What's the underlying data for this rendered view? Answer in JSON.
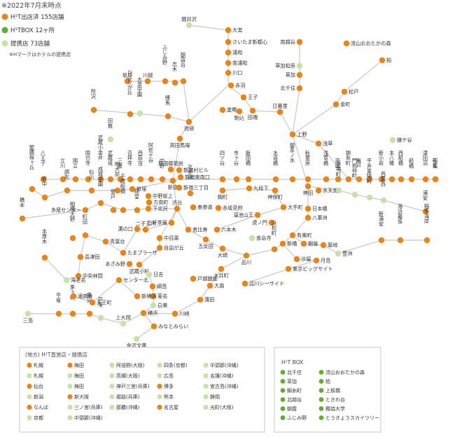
{
  "header": {
    "date_note": "※2022年7月末時点",
    "legend": [
      {
        "label": "H¹T出店済 155店舗",
        "color": "#ee8213"
      },
      {
        "label": "H¹TBOX 12ヶ所",
        "color": "#5fae2e"
      },
      {
        "label": "提携店 73店舗",
        "color": "#c6e3a7"
      }
    ],
    "hotel_note": "※Hマークはホテルの提携店"
  },
  "colors": {
    "store": "#ee8213",
    "box": "#5fae2e",
    "partner": "#c6e3a7",
    "line": "#c8c8c8"
  },
  "stations": [
    {
      "name": "軽井沢",
      "type": "partner"
    },
    {
      "name": "大宮",
      "type": "store"
    },
    {
      "name": "さいたま新都心",
      "type": "store"
    },
    {
      "name": "浦和",
      "type": "store"
    },
    {
      "name": "南浦和",
      "type": "store"
    },
    {
      "name": "川口",
      "type": "store"
    },
    {
      "name": "赤羽",
      "type": "store"
    },
    {
      "name": "王子",
      "type": "store"
    },
    {
      "name": "南越谷",
      "type": "store"
    },
    {
      "name": "流山おおたかの森",
      "type": "store"
    },
    {
      "name": "柏",
      "type": "store"
    },
    {
      "name": "草加松原",
      "type": "partner"
    },
    {
      "name": "草加",
      "type": "store"
    },
    {
      "name": "北千住",
      "type": "store"
    },
    {
      "name": "松戸",
      "type": "store"
    },
    {
      "name": "金町",
      "type": "store"
    },
    {
      "name": "鎌ケ谷",
      "type": "partner"
    },
    {
      "name": "日暮里",
      "type": "store"
    },
    {
      "name": "上野",
      "type": "store"
    },
    {
      "name": "浅草",
      "type": "store"
    },
    {
      "name": "巣鴨",
      "type": "store"
    },
    {
      "name": "駒込",
      "type": "store"
    },
    {
      "name": "田端",
      "type": "store"
    },
    {
      "name": "池袋",
      "type": "store"
    },
    {
      "name": "高田馬場",
      "type": "store"
    },
    {
      "name": "坂戸",
      "type": "store"
    },
    {
      "name": "川越",
      "type": "store"
    },
    {
      "name": "ふじみ野",
      "type": "store"
    },
    {
      "name": "朝霞台",
      "type": "store"
    },
    {
      "name": "志木",
      "type": "store"
    },
    {
      "name": "所沢",
      "type": "store"
    },
    {
      "name": "ひばりが丘",
      "type": "store"
    },
    {
      "name": "大泉学園",
      "type": "partner"
    },
    {
      "name": "練馬",
      "type": "store"
    },
    {
      "name": "田無",
      "type": "partner"
    },
    {
      "name": "八王子",
      "type": "store"
    },
    {
      "name": "立川",
      "type": "store"
    },
    {
      "name": "国立",
      "type": "store"
    },
    {
      "name": "国分寺",
      "type": "store"
    },
    {
      "name": "武蔵小金井",
      "type": "store"
    },
    {
      "name": "武蔵境",
      "type": "store"
    },
    {
      "name": "三鷹",
      "type": "store"
    },
    {
      "name": "吉祥寺",
      "type": "store"
    },
    {
      "name": "西荻窪",
      "type": "store"
    },
    {
      "name": "阿佐ケ谷",
      "type": "store"
    },
    {
      "name": "中野",
      "type": "store"
    },
    {
      "name": "新宿御苑前",
      "type": "store"
    },
    {
      "name": "新宿村ビル",
      "type": "store"
    },
    {
      "name": "新宿東南口",
      "type": "store"
    },
    {
      "name": "新宿",
      "type": "store"
    },
    {
      "name": "新宿三丁目",
      "type": "store"
    },
    {
      "name": "四ツ谷",
      "type": "store"
    },
    {
      "name": "市ヶ谷",
      "type": "store"
    },
    {
      "name": "飯田橋",
      "type": "store"
    },
    {
      "name": "水道橋",
      "type": "store"
    },
    {
      "name": "御茶ノ水",
      "type": "store"
    },
    {
      "name": "秋葉原",
      "type": "store"
    },
    {
      "name": "浅草橋",
      "type": "store"
    },
    {
      "name": "両国",
      "type": "store"
    },
    {
      "name": "錦糸町",
      "type": "store"
    },
    {
      "name": "亀戸",
      "type": "store"
    },
    {
      "name": "平井",
      "type": "store"
    },
    {
      "name": "新小岩",
      "type": "store"
    },
    {
      "name": "本八幡",
      "type": "store"
    },
    {
      "name": "西船橋",
      "type": "store"
    },
    {
      "name": "船橋",
      "type": "store"
    },
    {
      "name": "津田沼",
      "type": "store"
    },
    {
      "name": "稲毛",
      "type": "store"
    },
    {
      "name": "千葉",
      "type": "store"
    },
    {
      "name": "聖蹟桜ヶ丘",
      "type": "store"
    },
    {
      "name": "府中",
      "type": "store"
    },
    {
      "name": "調布",
      "type": "store"
    },
    {
      "name": "仙川",
      "type": "store"
    },
    {
      "name": "明大前",
      "type": "store"
    },
    {
      "name": "笹塚",
      "type": "store"
    },
    {
      "name": "中野坂上",
      "type": "store"
    },
    {
      "name": "方南町",
      "type": "store"
    },
    {
      "name": "橋本",
      "type": "store"
    },
    {
      "name": "多摩センター",
      "type": "store"
    },
    {
      "name": "下北沢",
      "type": "store"
    },
    {
      "name": "千歳船橋",
      "type": "store"
    },
    {
      "name": "成城学園",
      "type": "store"
    },
    {
      "name": "登戸",
      "type": "store"
    },
    {
      "name": "経堂",
      "type": "store"
    },
    {
      "name": "渋谷",
      "type": "store"
    },
    {
      "name": "表参道",
      "type": "store"
    },
    {
      "name": "北参道",
      "type": "store"
    },
    {
      "name": "赤坂見附",
      "type": "store"
    },
    {
      "name": "麹町",
      "type": "store"
    },
    {
      "name": "九段下",
      "type": "store"
    },
    {
      "name": "神田",
      "type": "store"
    },
    {
      "name": "水天宮",
      "type": "store"
    },
    {
      "name": "茅場町",
      "type": "partner"
    },
    {
      "name": "門前仲町",
      "type": "partner"
    },
    {
      "name": "東陽町",
      "type": "partner"
    },
    {
      "name": "西葛西",
      "type": "partner"
    },
    {
      "name": "浦安",
      "type": "store"
    },
    {
      "name": "日本橋",
      "type": "store"
    },
    {
      "name": "神保町",
      "type": "store"
    },
    {
      "name": "大手町",
      "type": "store"
    },
    {
      "name": "八重洲",
      "type": "store"
    },
    {
      "name": "溜池山王",
      "type": "store"
    },
    {
      "name": "虎ノ門",
      "type": "store"
    },
    {
      "name": "六本木",
      "type": "store"
    },
    {
      "name": "恵比寿",
      "type": "store"
    },
    {
      "name": "三軒茶屋",
      "type": "store"
    },
    {
      "name": "二子玉川",
      "type": "store"
    },
    {
      "name": "溝の口",
      "type": "store"
    },
    {
      "name": "中目黒",
      "type": "store"
    },
    {
      "name": "自由が丘",
      "type": "store"
    },
    {
      "name": "たまプラーザ",
      "type": "store"
    },
    {
      "name": "あざみ野",
      "type": "store"
    },
    {
      "name": "青葉台",
      "type": "store"
    },
    {
      "name": "町田",
      "type": "store"
    },
    {
      "name": "相模大野",
      "type": "store"
    },
    {
      "name": "長津田",
      "type": "store"
    },
    {
      "name": "中央林間",
      "type": "store"
    },
    {
      "name": "海老名",
      "type": "partner"
    },
    {
      "name": "本厚木",
      "type": "store"
    },
    {
      "name": "武蔵小杉",
      "type": "store"
    },
    {
      "name": "日吉",
      "type": "partner"
    },
    {
      "name": "センター北",
      "type": "store"
    },
    {
      "name": "綱島",
      "type": "store"
    },
    {
      "name": "菊名",
      "type": "store"
    },
    {
      "name": "白楽",
      "type": "partner"
    },
    {
      "name": "新横浜",
      "type": "store"
    },
    {
      "name": "横浜",
      "type": "store"
    },
    {
      "name": "川崎",
      "type": "store"
    },
    {
      "name": "みなとみらい",
      "type": "store"
    },
    {
      "name": "金沢文庫",
      "type": "partner"
    },
    {
      "name": "上大岡",
      "type": "partner"
    },
    {
      "name": "戸塚",
      "type": "partner"
    },
    {
      "name": "藤沢",
      "type": "store"
    },
    {
      "name": "茅ヶ崎",
      "type": "store"
    },
    {
      "name": "平塚",
      "type": "store"
    },
    {
      "name": "三島",
      "type": "partner"
    },
    {
      "name": "湘南台",
      "type": "store"
    },
    {
      "name": "天王町",
      "type": "store"
    },
    {
      "name": "五反田",
      "type": "store"
    },
    {
      "name": "大崎",
      "type": "store"
    },
    {
      "name": "品川",
      "type": "store"
    },
    {
      "name": "泉岳寺",
      "type": "partner"
    },
    {
      "name": "浜松町",
      "type": "store"
    },
    {
      "name": "新橋",
      "type": "store"
    },
    {
      "name": "有楽町",
      "type": "store"
    },
    {
      "name": "銀座",
      "type": "store"
    },
    {
      "name": "築地",
      "type": "store"
    },
    {
      "name": "汐留",
      "type": "store"
    },
    {
      "name": "月島",
      "type": "store"
    },
    {
      "name": "豊洲",
      "type": "partner"
    },
    {
      "name": "新浦安",
      "type": "store"
    },
    {
      "name": "海浜幕張",
      "type": "store"
    },
    {
      "name": "稲毛海岸",
      "type": "store"
    },
    {
      "name": "東京ビッグサイト",
      "type": "store"
    },
    {
      "name": "品川シーサイド",
      "type": "store"
    },
    {
      "name": "大井町",
      "type": "store"
    },
    {
      "name": "大森",
      "type": "store"
    },
    {
      "name": "蒲田",
      "type": "store"
    },
    {
      "name": "戸越銀座",
      "type": "store"
    }
  ],
  "regional": {
    "title": "(地方) H¹T直営店・提携店",
    "items": [
      {
        "name": "札幌",
        "type": "store"
      },
      {
        "name": "梅田",
        "type": "store"
      },
      {
        "name": "阿倍野(大阪)",
        "type": "partner"
      },
      {
        "name": "四条(京都)",
        "type": "partner"
      },
      {
        "name": "中頭郡(沖縄)",
        "type": "partner"
      },
      {
        "name": "札幌",
        "type": "partner"
      },
      {
        "name": "梅田",
        "type": "partner"
      },
      {
        "name": "高槻(大阪)",
        "type": "partner"
      },
      {
        "name": "広島",
        "type": "partner"
      },
      {
        "name": "名護(沖縄)",
        "type": "partner"
      },
      {
        "name": "仙台",
        "type": "store"
      },
      {
        "name": "梅田",
        "type": "partner"
      },
      {
        "name": "神戸三宮(兵庫)",
        "type": "partner"
      },
      {
        "name": "博多",
        "type": "store"
      },
      {
        "name": "宮古島(沖縄)",
        "type": "partner"
      },
      {
        "name": "新潟",
        "type": "partner"
      },
      {
        "name": "新大阪",
        "type": "store"
      },
      {
        "name": "姫路(兵庫)",
        "type": "partner"
      },
      {
        "name": "熊本",
        "type": "partner"
      },
      {
        "name": "静岡",
        "type": "partner"
      },
      {
        "name": "なんば",
        "type": "store"
      },
      {
        "name": "三ノ宮(兵庫)",
        "type": "partner"
      },
      {
        "name": "那覇(沖縄)",
        "type": "partner"
      },
      {
        "name": "名古屋",
        "type": "store"
      },
      {
        "name": "光町(大阪)",
        "type": "partner"
      },
      {
        "name": "京都",
        "type": "partner"
      },
      {
        "name": "中頭郡(沖縄)",
        "type": "partner"
      }
    ]
  },
  "box": {
    "title": "H¹T BOX",
    "items": [
      {
        "name": "北千住"
      },
      {
        "name": "流山おおたかの森"
      },
      {
        "name": "草加"
      },
      {
        "name": "柏"
      },
      {
        "name": "錦糸町"
      },
      {
        "name": "上板橋"
      },
      {
        "name": "北越谷"
      },
      {
        "name": "ときわ台"
      },
      {
        "name": "朝霞"
      },
      {
        "name": "獨協大学"
      },
      {
        "name": "ふじみ野"
      },
      {
        "name": "とうきょうスカイツリー"
      }
    ]
  }
}
